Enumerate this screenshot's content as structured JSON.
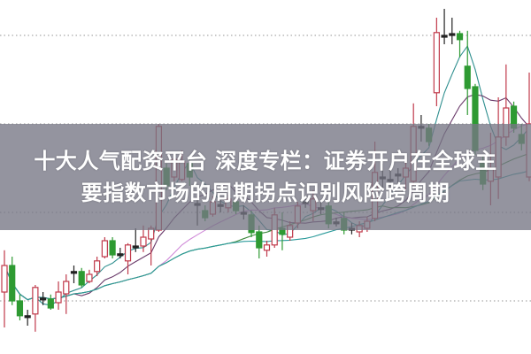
{
  "title": {
    "line1": "十大人气配资平台 深度专栏：证券开户在全球主",
    "line2": "要指数市场的周期拐点识别风险跨周期"
  },
  "colors": {
    "up": "#c0394a",
    "down": "#2e9a32",
    "doji": "#222222",
    "ma": [
      "#2f8f8f",
      "#6a3a6a",
      "#d08ad8",
      "#3f8a3f",
      "#2a9a9a"
    ],
    "grid": "#aaaaaa",
    "banner": "#767684"
  },
  "chart_data": {
    "type": "candlestick",
    "title": "",
    "xlabel": "",
    "ylabel": "",
    "ylim": [
      5,
      15
    ],
    "grid": "horizontal-dotted",
    "moving_averages": [
      5,
      10,
      20,
      30,
      40
    ],
    "ohlc": [
      [
        6.75,
        7.93,
        5.75,
        7.5
      ],
      [
        7.5,
        7.75,
        6.38,
        6.5
      ],
      [
        6.5,
        6.68,
        5.95,
        6.08
      ],
      [
        6.08,
        6.25,
        5.8,
        6.05
      ],
      [
        6.13,
        6.95,
        5.63,
        6.88
      ],
      [
        6.55,
        6.75,
        6.38,
        6.58
      ],
      [
        6.55,
        6.68,
        6.25,
        6.3
      ],
      [
        6.45,
        7.05,
        6.25,
        6.75
      ],
      [
        6.7,
        7.25,
        6.13,
        7.05
      ],
      [
        7.33,
        7.5,
        7.0,
        7.3
      ],
      [
        7.33,
        7.43,
        6.88,
        6.95
      ],
      [
        7.05,
        7.38,
        7.0,
        7.25
      ],
      [
        7.33,
        7.75,
        7.2,
        7.63
      ],
      [
        7.75,
        8.3,
        7.7,
        8.2
      ],
      [
        8.2,
        8.3,
        7.7,
        7.8
      ],
      [
        7.83,
        8.0,
        7.7,
        7.8
      ],
      [
        7.63,
        8.13,
        7.25,
        8.08
      ],
      [
        8.05,
        8.55,
        7.88,
        8.05
      ],
      [
        8.05,
        8.63,
        7.88,
        8.3
      ],
      [
        8.25,
        8.63,
        7.5,
        8.55
      ],
      [
        8.5,
        11.5,
        8.45,
        11.43
      ],
      [
        10.25,
        10.38,
        9.63,
        9.75
      ],
      [
        10.0,
        10.63,
        9.88,
        10.5
      ],
      [
        9.93,
        10.75,
        9.88,
        10.43
      ],
      [
        10.38,
        10.5,
        9.75,
        10.0
      ],
      [
        9.25,
        9.63,
        8.63,
        9.23
      ],
      [
        9.05,
        9.2,
        8.75,
        8.85
      ],
      [
        8.95,
        9.45,
        8.88,
        9.3
      ],
      [
        9.2,
        9.35,
        9.0,
        9.22
      ],
      [
        9.13,
        9.5,
        9.0,
        9.38
      ],
      [
        9.3,
        9.4,
        8.95,
        9.05
      ],
      [
        9.0,
        9.2,
        8.8,
        9.0
      ],
      [
        8.93,
        9.05,
        8.3,
        8.43
      ],
      [
        8.45,
        8.63,
        7.7,
        8.0
      ],
      [
        7.93,
        8.2,
        7.75,
        8.08
      ],
      [
        8.08,
        9.13,
        8.0,
        8.93
      ],
      [
        8.55,
        9.0,
        7.93,
        8.38
      ],
      [
        8.3,
        8.75,
        8.2,
        8.63
      ],
      [
        8.7,
        9.3,
        8.55,
        9.18
      ],
      [
        9.3,
        9.45,
        9.13,
        9.28
      ],
      [
        9.05,
        9.63,
        8.75,
        9.38
      ],
      [
        9.13,
        9.3,
        8.95,
        9.13
      ],
      [
        9.18,
        9.3,
        8.55,
        8.68
      ],
      [
        8.73,
        8.85,
        8.6,
        8.7
      ],
      [
        8.83,
        9.0,
        8.38,
        8.5
      ],
      [
        8.55,
        8.7,
        8.38,
        8.53
      ],
      [
        8.45,
        8.75,
        8.3,
        8.63
      ],
      [
        8.55,
        8.88,
        8.45,
        8.75
      ],
      [
        8.83,
        11.0,
        8.75,
        10.13
      ],
      [
        10.0,
        10.38,
        9.63,
        9.98
      ],
      [
        9.93,
        10.25,
        9.63,
        9.9
      ],
      [
        10.08,
        10.25,
        9.75,
        10.05
      ],
      [
        10.0,
        10.63,
        9.63,
        10.25
      ],
      [
        9.88,
        12.08,
        9.75,
        11.43
      ],
      [
        11.43,
        11.75,
        11.0,
        11.4
      ],
      [
        11.38,
        11.5,
        10.88,
        11.0
      ],
      [
        12.38,
        14.5,
        12.0,
        14.08
      ],
      [
        14.0,
        14.75,
        13.75,
        13.98
      ],
      [
        14.05,
        14.5,
        13.75,
        14.05
      ],
      [
        14.05,
        14.13,
        13.38,
        13.88
      ],
      [
        13.13,
        14.13,
        11.75,
        12.5
      ],
      [
        12.55,
        12.63,
        10.63,
        10.75
      ],
      [
        10.38,
        10.63,
        9.63,
        9.8
      ],
      [
        9.88,
        11.25,
        9.2,
        10.25
      ],
      [
        10.0,
        12.25,
        9.38,
        11.13
      ],
      [
        11.13,
        13.18,
        10.88,
        11.95
      ],
      [
        12.0,
        12.13,
        11.25,
        11.38
      ],
      [
        11.2,
        11.5,
        10.75,
        10.95
      ],
      [
        10.0,
        12.95,
        9.88,
        11.5
      ]
    ]
  }
}
